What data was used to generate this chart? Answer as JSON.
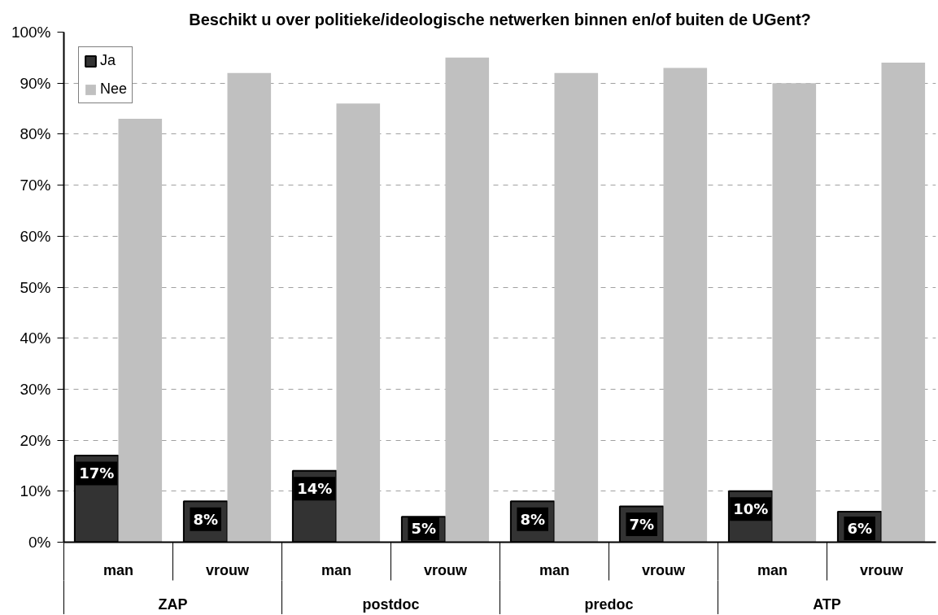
{
  "chart_data": {
    "type": "bar",
    "title": "Beschikt u over politieke/ideologische netwerken binnen en/of buiten de UGent?",
    "categories": [
      "man",
      "vrouw",
      "man",
      "vrouw",
      "man",
      "vrouw",
      "man",
      "vrouw"
    ],
    "annotations": [
      "ZAP",
      "postdoc",
      "predoc",
      "ATP"
    ],
    "series": [
      {
        "name": "Ja",
        "color": "#333333",
        "values": [
          17,
          8,
          14,
          5,
          8,
          7,
          10,
          6
        ],
        "value_labels": [
          "17%",
          "8%",
          "14%",
          "5%",
          "8%",
          "7%",
          "10%",
          "6%"
        ]
      },
      {
        "name": "Nee",
        "color": "#c0c0c0",
        "values": [
          83,
          92,
          86,
          95,
          92,
          93,
          90,
          94
        ]
      }
    ],
    "ylim": [
      0,
      100
    ],
    "yticks": [
      {
        "value": 0,
        "label": "0%"
      },
      {
        "value": 10,
        "label": "10%"
      },
      {
        "value": 20,
        "label": "20%"
      },
      {
        "value": 30,
        "label": "30%"
      },
      {
        "value": 40,
        "label": "40%"
      },
      {
        "value": 50,
        "label": "50%"
      },
      {
        "value": 60,
        "label": "60%"
      },
      {
        "value": 70,
        "label": "70%"
      },
      {
        "value": 80,
        "label": "80%"
      },
      {
        "value": 90,
        "label": "90%"
      },
      {
        "value": 100,
        "label": "100%"
      }
    ],
    "grid": "y",
    "legend": "top left"
  }
}
